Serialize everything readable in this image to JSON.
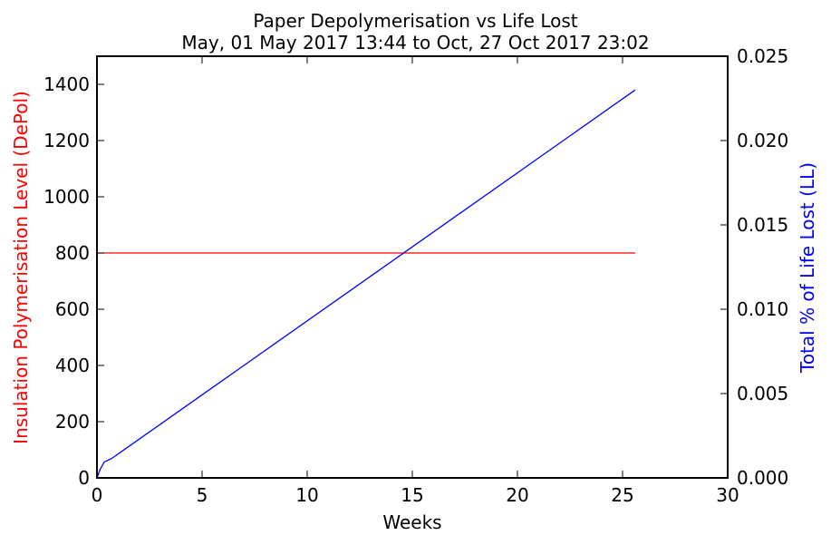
{
  "chart_data": {
    "type": "line",
    "title": "Paper Depolymerisation vs Life Lost",
    "subtitle": "May, 01 May 2017 13:44 to Oct, 27 Oct 2017 23:02",
    "xlabel": "Weeks",
    "ylabel_left": "Insulation Polymerisation Level (DePol)",
    "ylabel_right": "Total % of Life Lost (LL)",
    "xlim": [
      0,
      30
    ],
    "ylim_left": [
      0,
      1500
    ],
    "ylim_right": [
      0,
      0.025
    ],
    "x_ticks": [
      "0",
      "5",
      "10",
      "15",
      "20",
      "25",
      "30"
    ],
    "y_left_ticks": [
      "0",
      "200",
      "400",
      "600",
      "800",
      "1000",
      "1200",
      "1400"
    ],
    "y_right_ticks": [
      "0.000",
      "0.005",
      "0.010",
      "0.015",
      "0.020",
      "0.025"
    ],
    "grid": false,
    "series": [
      {
        "name": "DePol",
        "axis": "left",
        "color": "#ff0000",
        "x": [
          0,
          25.6
        ],
        "y": [
          800,
          800
        ]
      },
      {
        "name": "LL",
        "axis": "right",
        "color": "#0000ff",
        "x": [
          0,
          0.15,
          0.35,
          0.7,
          25.6
        ],
        "y": [
          0,
          0.0005,
          0.00095,
          0.00115,
          0.023
        ]
      }
    ],
    "label_colors": {
      "left": "#ff0000",
      "right": "#0000ff"
    }
  }
}
